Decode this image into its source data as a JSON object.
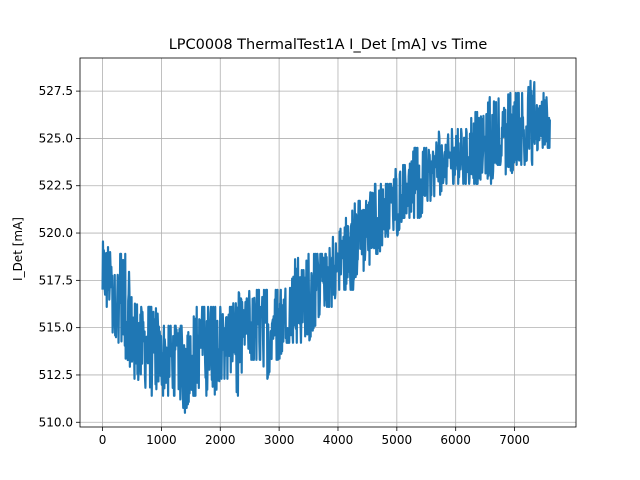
{
  "chart_data": {
    "type": "line",
    "title": "LPC0008 ThermalTest1A I_Det [mA] vs Time",
    "xlabel": "",
    "ylabel": "I_Det [mA]",
    "xlim": [
      -383,
      8044
    ],
    "ylim": [
      509.75,
      529.25
    ],
    "x_ticks": [
      0,
      1000,
      2000,
      3000,
      4000,
      5000,
      6000,
      7000
    ],
    "x_tick_labels": [
      "0",
      "1000",
      "2000",
      "3000",
      "4000",
      "5000",
      "6000",
      "7000"
    ],
    "y_ticks": [
      510.0,
      512.5,
      515.0,
      517.5,
      520.0,
      522.5,
      525.0,
      527.5
    ],
    "y_tick_labels": [
      "510.0",
      "512.5",
      "515.0",
      "517.5",
      "520.0",
      "522.5",
      "525.0",
      "527.5"
    ],
    "grid": true,
    "series": [
      {
        "color": "#1f77b4",
        "x": [
          0,
          100,
          200,
          300,
          400,
          500,
          600,
          700,
          800,
          900,
          1000,
          1100,
          1200,
          1300,
          1400,
          1500,
          1600,
          1700,
          1800,
          1900,
          2000,
          2100,
          2200,
          2300,
          2400,
          2500,
          2600,
          2700,
          2800,
          2900,
          3000,
          3100,
          3200,
          3300,
          3400,
          3500,
          3600,
          3700,
          3800,
          3900,
          4000,
          4100,
          4200,
          4300,
          4400,
          4500,
          4600,
          4700,
          4800,
          4900,
          5000,
          5100,
          5200,
          5300,
          5400,
          5500,
          5600,
          5700,
          5800,
          5900,
          6000,
          6100,
          6200,
          6300,
          6400,
          6500,
          6600,
          6700,
          6800,
          6900,
          7000,
          7100,
          7200,
          7300,
          7400,
          7500,
          7600
        ],
        "y": [
          517.5,
          517.6,
          517.1,
          516.3,
          515.5,
          515.0,
          514.5,
          514.2,
          513.9,
          513.8,
          513.7,
          513.6,
          513.6,
          513.6,
          513.7,
          513.8,
          514.0,
          514.1,
          514.3,
          514.5,
          514.6,
          514.7,
          514.8,
          514.9,
          515.0,
          515.0,
          515.0,
          515.1,
          515.2,
          515.3,
          515.5,
          515.7,
          516.0,
          516.3,
          516.6,
          516.9,
          517.2,
          517.5,
          517.8,
          518.2,
          518.6,
          518.9,
          519.3,
          519.7,
          520.1,
          520.4,
          520.8,
          521.2,
          521.5,
          521.9,
          522.2,
          522.5,
          522.8,
          523.0,
          523.2,
          523.4,
          523.5,
          523.7,
          523.8,
          523.9,
          524.0,
          524.1,
          524.2,
          524.3,
          524.4,
          524.5,
          524.6,
          524.8,
          524.9,
          525.0,
          525.1,
          525.2,
          525.3,
          525.5,
          525.6,
          525.8,
          526.0
        ],
        "y_min": [
          516.1,
          516.1,
          514.2,
          514.2,
          513.3,
          512.3,
          512.3,
          511.4,
          511.4,
          511.4,
          511.4,
          511.4,
          511.4,
          511.4,
          510.5,
          511.4,
          511.4,
          511.4,
          511.4,
          511.4,
          512.3,
          512.3,
          512.3,
          511.4,
          513.3,
          513.3,
          513.3,
          513.3,
          512.3,
          513.3,
          513.3,
          514.2,
          514.2,
          514.2,
          514.2,
          514.2,
          515.1,
          515.1,
          516.1,
          516.1,
          517.0,
          517.0,
          517.0,
          517.0,
          518.0,
          518.0,
          518.9,
          518.9,
          519.8,
          519.8,
          519.8,
          520.8,
          520.8,
          520.8,
          520.8,
          521.7,
          521.7,
          521.7,
          522.6,
          522.6,
          522.6,
          522.6,
          522.6,
          522.6,
          522.6,
          522.6,
          522.6,
          523.6,
          523.6,
          522.6,
          523.6,
          523.6,
          523.6,
          523.6,
          524.5,
          524.5,
          524.5
        ],
        "y_max": [
          519.8,
          519.8,
          517.9,
          518.9,
          518.9,
          517.0,
          516.1,
          516.1,
          516.1,
          516.1,
          515.1,
          515.1,
          515.1,
          515.1,
          515.1,
          515.1,
          516.1,
          516.1,
          516.1,
          516.1,
          516.1,
          516.1,
          516.1,
          517.0,
          516.1,
          517.0,
          517.0,
          517.0,
          517.0,
          517.0,
          517.0,
          517.0,
          517.9,
          518.9,
          517.9,
          518.9,
          518.9,
          518.9,
          518.9,
          519.8,
          519.8,
          520.8,
          520.8,
          521.7,
          521.7,
          521.7,
          522.6,
          522.6,
          522.6,
          522.6,
          523.6,
          523.6,
          523.6,
          524.5,
          524.5,
          524.5,
          524.5,
          525.5,
          524.5,
          525.5,
          525.5,
          525.5,
          525.5,
          526.4,
          526.4,
          526.4,
          527.4,
          527.4,
          526.4,
          527.4,
          527.4,
          527.4,
          527.4,
          528.3,
          527.4,
          527.4,
          527.4
        ]
      }
    ]
  }
}
